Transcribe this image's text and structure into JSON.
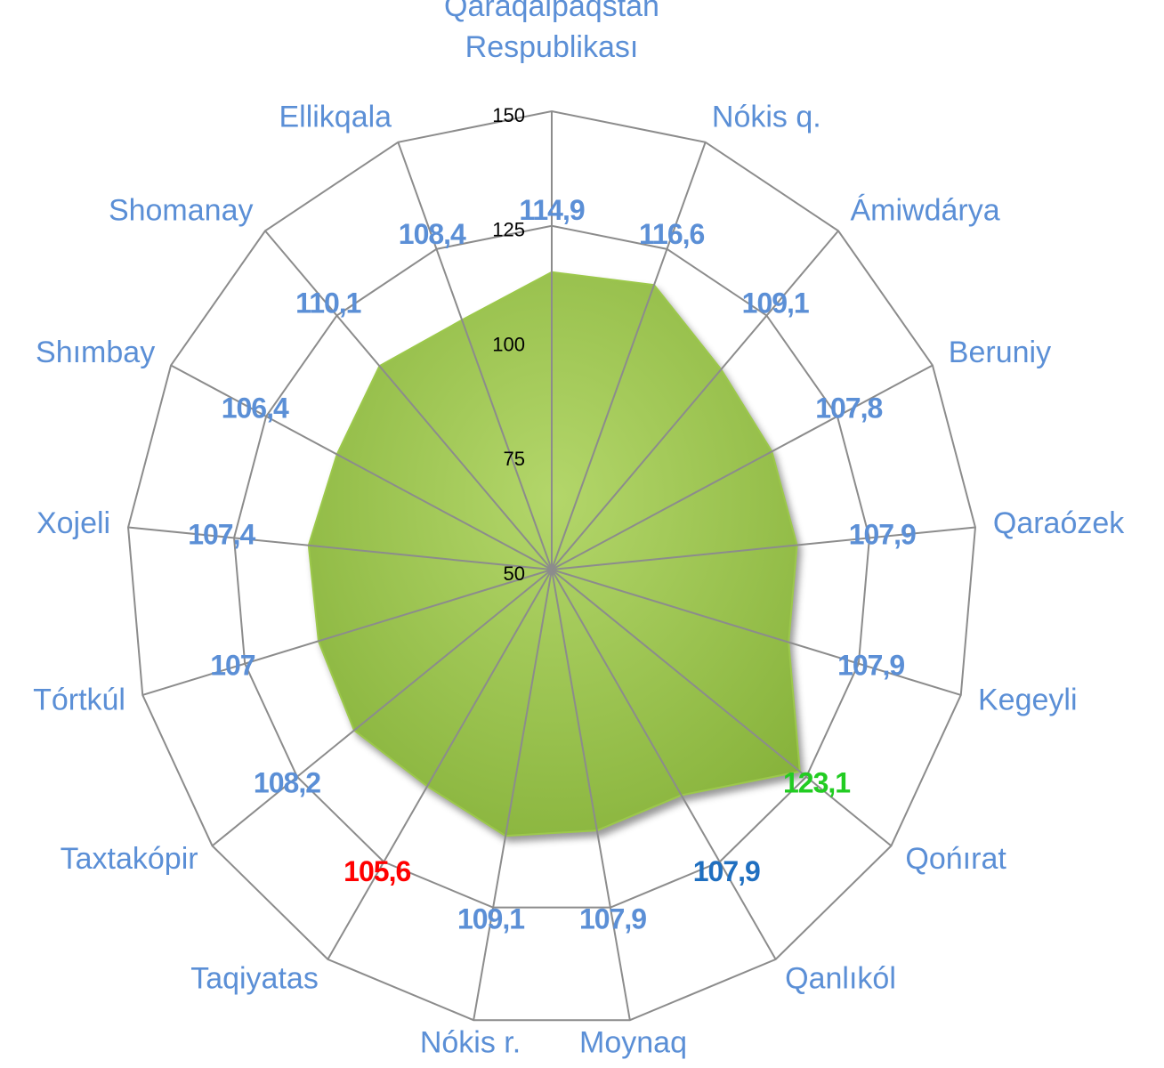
{
  "chart_data": {
    "type": "radar",
    "categories": [
      "Qaraqalpaqstan Respublikası",
      "Nókis  q.",
      "Ámiwdárya",
      "Beruniy",
      "Qaraózek",
      "Kegeyli",
      "Qońırat",
      "Qanlıkól",
      "Moynaq",
      "Nókis r.",
      "Taqiyatas",
      "Taxtakópir",
      "Tórtkúl",
      "Xojeli",
      "Shımbay",
      "Shomanay",
      "Ellikqala"
    ],
    "values": [
      114.9,
      116.6,
      109.1,
      107.8,
      107.9,
      107.9,
      123.1,
      107.9,
      107.9,
      109.1,
      105.6,
      108.2,
      107,
      107.4,
      106.4,
      110.1,
      108.4
    ],
    "value_labels": [
      "114,9",
      "116,6",
      "109,1",
      "107,8",
      "107,9",
      "107,9",
      "123,1",
      "107,9",
      "107,9",
      "109,1",
      "105,6",
      "108,2",
      "107",
      "107,4",
      "106,4",
      "110,1",
      "108,4"
    ],
    "value_label_colors": [
      "#5b8fd6",
      "#5b8fd6",
      "#5b8fd6",
      "#5b8fd6",
      "#5b8fd6",
      "#5b8fd6",
      "#22cc22",
      "#1f6fc0",
      "#5b8fd6",
      "#5b8fd6",
      "#ff0000",
      "#5b8fd6",
      "#5b8fd6",
      "#5b8fd6",
      "#5b8fd6",
      "#5b8fd6",
      "#5b8fd6"
    ],
    "color": "#9cc84b",
    "ylim": [
      50,
      150
    ],
    "yticks": [
      50,
      75,
      100,
      125,
      150
    ],
    "grid": true
  }
}
